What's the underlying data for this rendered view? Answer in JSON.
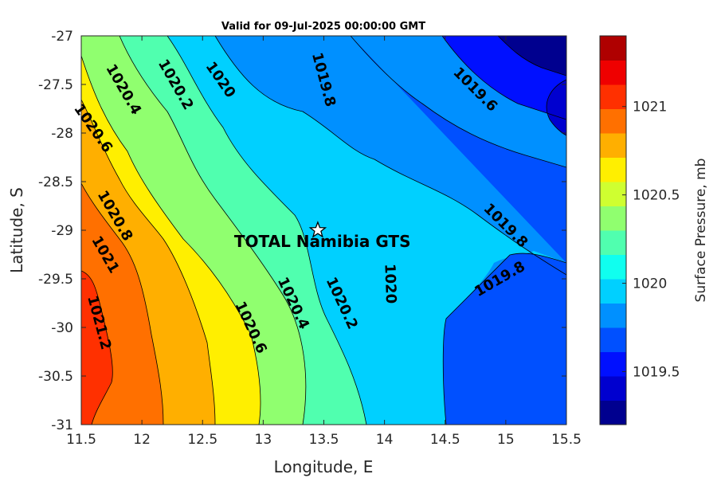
{
  "chart_data": {
    "type": "contour",
    "title": "Valid for 09-Jul-2025 00:00:00 GMT",
    "xlabel": "Longitude, E",
    "ylabel": "Latitude, S",
    "xlim": [
      11.5,
      15.5
    ],
    "ylim": [
      -31,
      -27
    ],
    "x_ticks": [
      "11.5",
      "12",
      "12.5",
      "13",
      "13.5",
      "14",
      "14.5",
      "15",
      "15.5"
    ],
    "y_ticks": [
      "-27",
      "-27.5",
      "-28",
      "-28.5",
      "-29",
      "-29.5",
      "-30",
      "-30.5",
      "-31"
    ],
    "colorbar": {
      "label": "Surface Pressure, mb",
      "levels": [
        1019.2,
        1019.3,
        1019.4,
        1019.5,
        1019.6,
        1019.7,
        1019.8,
        1019.9,
        1020.0,
        1020.1,
        1020.2,
        1020.3,
        1020.4,
        1020.5,
        1020.6,
        1020.7,
        1020.8,
        1020.9,
        1021.0,
        1021.1,
        1021.2,
        1021.3,
        1021.4
      ],
      "ticks": [
        "1019.5",
        "1020",
        "1020.5",
        "1021"
      ],
      "colors": [
        "#00008f",
        "#0000cf",
        "#0010ff",
        "#0050ff",
        "#0090ff",
        "#00d0ff",
        "#10ffef",
        "#50ffaf",
        "#90ff6f",
        "#cfff30",
        "#ffef00",
        "#ffaf00",
        "#ff7000",
        "#ff3000",
        "#ef0000",
        "#af0000"
      ]
    },
    "contour_labels": [
      {
        "text": "1020.4",
        "lon": 11.85,
        "lat": -27.55
      },
      {
        "text": "1020.2",
        "lon": 12.28,
        "lat": -27.5
      },
      {
        "text": "1020",
        "lon": 12.65,
        "lat": -27.45
      },
      {
        "text": "1019.8",
        "lon": 13.5,
        "lat": -27.45
      },
      {
        "text": "1019.6",
        "lon": 14.75,
        "lat": -27.55
      },
      {
        "text": "1020.6",
        "lon": 11.6,
        "lat": -27.95
      },
      {
        "text": "1020.8",
        "lon": 11.78,
        "lat": -28.85
      },
      {
        "text": "1021",
        "lon": 11.7,
        "lat": -29.25
      },
      {
        "text": "1021.2",
        "lon": 11.65,
        "lat": -29.95
      },
      {
        "text": "1020.6",
        "lon": 12.9,
        "lat": -30.0
      },
      {
        "text": "1020.4",
        "lon": 13.25,
        "lat": -29.75
      },
      {
        "text": "1020.2",
        "lon": 13.65,
        "lat": -29.75
      },
      {
        "text": "1020",
        "lon": 14.05,
        "lat": -29.55
      },
      {
        "text": "1019.8",
        "lon": 15.0,
        "lat": -28.95
      },
      {
        "text": "1019.8",
        "lon": 14.95,
        "lat": -29.5
      }
    ],
    "marker": {
      "name": "TOTAL Namibia GTS",
      "lon": 13.45,
      "lat": -29.0
    }
  }
}
